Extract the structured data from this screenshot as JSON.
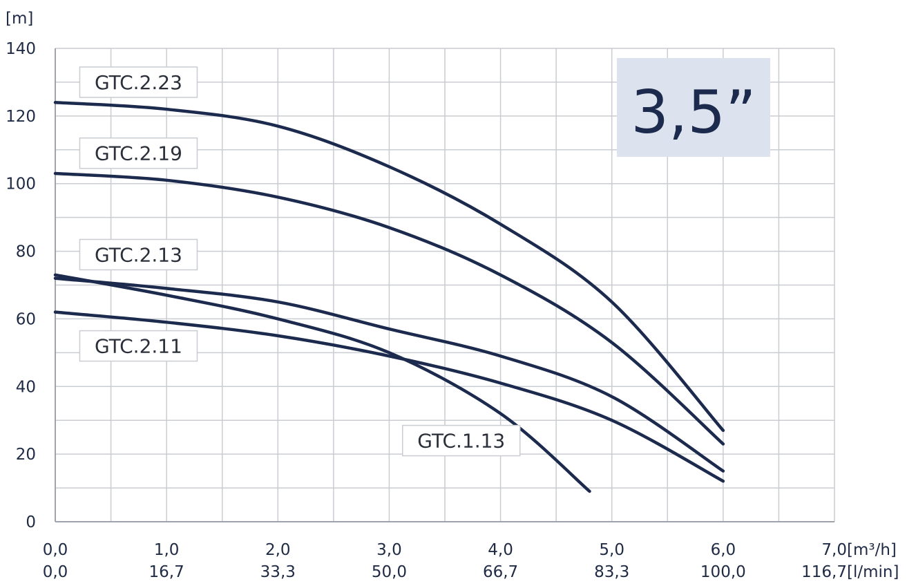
{
  "chart_data": {
    "type": "line",
    "badge": "3,5”",
    "y_unit": "[m]",
    "x_unit": "[m³/h]",
    "x2_unit": "[l/min]",
    "x_ticks": [
      "0,0",
      "1,0",
      "2,0",
      "3,0",
      "4,0",
      "5,0",
      "6,0",
      "7,0"
    ],
    "x2_ticks": [
      "0,0",
      "16,7",
      "33,3",
      "50,0",
      "66,7",
      "83,3",
      "100,0",
      "116,7"
    ],
    "y_ticks": [
      "0",
      "20",
      "40",
      "60",
      "80",
      "100",
      "120",
      "140"
    ],
    "xlim": [
      0,
      7
    ],
    "ylim": [
      0,
      140
    ],
    "grid": true,
    "colors": {
      "line": "#1c2a4e",
      "grid": "#c9ccd1",
      "badge_bg": "#dde3ee",
      "label_border": "#c9ccd1"
    },
    "series": [
      {
        "name": "GTC.2.23",
        "x": [
          0,
          1,
          2,
          3,
          4,
          5,
          6
        ],
        "y": [
          124,
          122,
          117,
          105,
          88,
          65,
          27
        ]
      },
      {
        "name": "GTC.2.19",
        "x": [
          0,
          1,
          2,
          3,
          4,
          5,
          6
        ],
        "y": [
          103,
          101,
          96,
          87,
          73,
          53,
          23
        ]
      },
      {
        "name": "GTC.2.13",
        "x": [
          0,
          1,
          2,
          3,
          4,
          5,
          6
        ],
        "y": [
          72,
          69,
          65,
          57,
          49,
          37,
          15
        ]
      },
      {
        "name": "GTC.2.11",
        "x": [
          0,
          1,
          2,
          3,
          4,
          5,
          6
        ],
        "y": [
          62,
          59,
          55,
          49,
          41,
          30,
          12
        ]
      },
      {
        "name": "GTC.1.13",
        "x": [
          0,
          1,
          2,
          3,
          4,
          4.8
        ],
        "y": [
          73,
          67,
          60,
          50,
          32,
          9
        ]
      }
    ]
  }
}
